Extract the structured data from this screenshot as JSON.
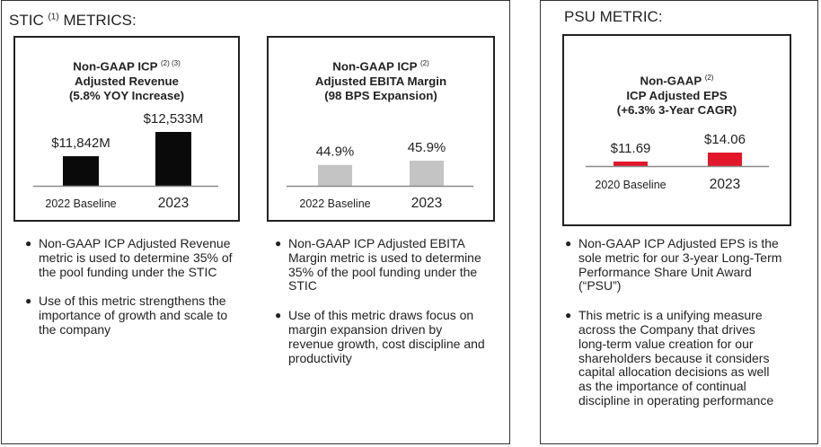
{
  "stic_panel": {
    "title_prefix": "STIC",
    "title_sup": "(1)",
    "title_suffix": "METRICS:",
    "cards": [
      {
        "title_line1": "Non-GAAP ICP",
        "title_sup": "(2) (3)",
        "title_line2": "Adjusted Revenue",
        "title_line3": "(5.8% YOY Increase)"
      },
      {
        "title_line1": "Non-GAAP ICP",
        "title_sup": "(2)",
        "title_line2": "Adjusted EBITA Margin",
        "title_line3": "(98 BPS Expansion)"
      }
    ],
    "bullets_left": [
      "Non-GAAP ICP Adjusted Revenue metric is used to determine 35% of the pool funding under the STIC",
      "Use of this metric strengthens the importance of growth and scale to the company"
    ],
    "bullets_right": [
      "Non-GAAP ICP Adjusted EBITA Margin metric is used to determine 35% of the pool funding under the STIC",
      "Use of this metric draws focus on margin expansion driven by revenue growth, cost discipline and productivity"
    ]
  },
  "psu_panel": {
    "title": "PSU METRIC:",
    "card": {
      "title_line1": "Non-GAAP",
      "title_sup": "(2)",
      "title_line2": "ICP Adjusted EPS",
      "title_line3": "(+6.3% 3-Year CAGR)"
    },
    "bullets": [
      "Non-GAAP ICP Adjusted EPS is the sole metric for our 3-year Long-Term Performance Share Unit Award (“PSU”)",
      "This metric is a unifying measure across the Company that drives long-term value creation for our shareholders because it considers capital allocation decisions as well as the importance of continual discipline in operating performance"
    ]
  },
  "colors": {
    "revenue_bar": "#0a0a0a",
    "margin_bar": "#c4c4c4",
    "eps_bar": "#e3172a",
    "baseline": "#8a8a8a"
  },
  "chart_data": [
    {
      "type": "bar",
      "title": "Non-GAAP ICP Adjusted Revenue (5.8% YOY Increase)",
      "categories": [
        "2022 Baseline",
        "2023"
      ],
      "values": [
        11842,
        12533
      ],
      "labels": [
        "$11,842M",
        "$12,533M"
      ],
      "unit": "$M",
      "ylim": [
        11000,
        12800
      ]
    },
    {
      "type": "bar",
      "title": "Non-GAAP ICP Adjusted EBITA Margin (98 BPS Expansion)",
      "categories": [
        "2022 Baseline",
        "2023"
      ],
      "values": [
        44.9,
        45.9
      ],
      "labels": [
        "44.9%",
        "45.9%"
      ],
      "unit": "%",
      "ylim": [
        40,
        50
      ]
    },
    {
      "type": "bar",
      "title": "Non-GAAP ICP Adjusted EPS (+6.3% 3-Year CAGR)",
      "categories": [
        "2020 Baseline",
        "2023"
      ],
      "values": [
        11.69,
        14.06
      ],
      "labels": [
        "$11.69",
        "$14.06"
      ],
      "unit": "$",
      "ylim": [
        10.5,
        15
      ]
    }
  ]
}
